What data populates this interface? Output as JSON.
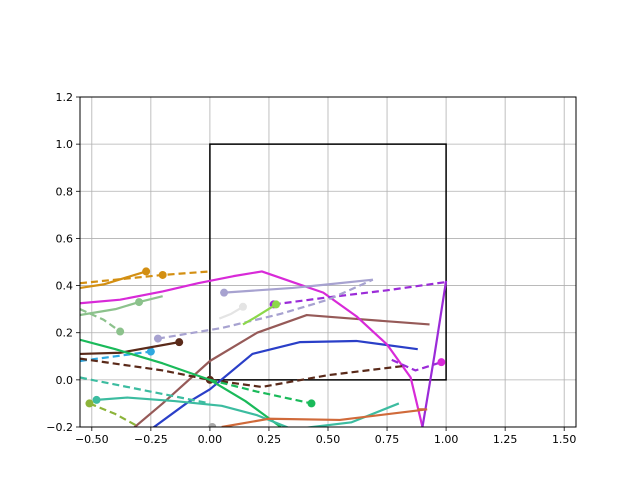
{
  "chart_data": {
    "type": "line",
    "title": "",
    "xlabel": "",
    "ylabel": "",
    "xlim": [
      -0.55,
      1.55
    ],
    "ylim": [
      -0.2,
      1.2
    ],
    "grid": true,
    "xticks": [
      "−0.50",
      "−0.25",
      "0.00",
      "0.25",
      "0.50",
      "0.75",
      "1.00",
      "1.25",
      "1.50"
    ],
    "xtick_values": [
      -0.5,
      -0.25,
      0,
      0.25,
      0.5,
      0.75,
      1.0,
      1.25,
      1.5
    ],
    "yticks": [
      "−0.2",
      "0.0",
      "0.2",
      "0.4",
      "0.6",
      "0.8",
      "1.0",
      "1.2"
    ],
    "ytick_values": [
      -0.2,
      0,
      0.2,
      0.4,
      0.6,
      0.8,
      1.0,
      1.2
    ],
    "box": {
      "x": [
        0,
        1,
        1,
        0,
        0
      ],
      "y": [
        0,
        0,
        1,
        1,
        0
      ],
      "color": "#000000"
    },
    "series": [
      {
        "color": "#2a3fc8",
        "dash": false,
        "x": [
          -0.25,
          -0.1,
          0.0,
          0.18,
          0.38,
          0.62,
          0.88
        ],
        "y": [
          -0.21,
          -0.1,
          -0.04,
          0.11,
          0.16,
          0.165,
          0.13
        ]
      },
      {
        "color": "#965a58",
        "dash": false,
        "x": [
          -0.33,
          -0.2,
          0.0,
          0.2,
          0.41,
          0.6,
          0.93
        ],
        "y": [
          -0.21,
          -0.1,
          0.08,
          0.2,
          0.275,
          0.26,
          0.235
        ]
      },
      {
        "color": "#d82ad8",
        "dash": false,
        "x": [
          -0.55,
          -0.38,
          -0.2,
          -0.05,
          0.1,
          0.22,
          0.35,
          0.48,
          0.62,
          0.75,
          0.85,
          0.9
        ],
        "y": [
          0.325,
          0.34,
          0.375,
          0.41,
          0.44,
          0.46,
          0.415,
          0.37,
          0.27,
          0.15,
          0.01,
          -0.2
        ]
      },
      {
        "color": "#9b2bd8",
        "dash": false,
        "x": [
          0.9,
          0.95,
          1.0
        ],
        "y": [
          -0.2,
          0.1,
          0.42
        ]
      },
      {
        "color": "#9b2bd8",
        "dash": true,
        "marker": 0,
        "x": [
          0.27,
          0.5,
          0.75,
          1.0
        ],
        "y": [
          0.32,
          0.35,
          0.38,
          0.415
        ]
      },
      {
        "color": "#9b2bd8",
        "dash": true,
        "x": [
          0.77,
          0.87,
          0.98
        ],
        "y": [
          0.085,
          0.04,
          0.075
        ]
      },
      {
        "color": "#d82ad8",
        "dash": false,
        "marker": 2,
        "x": [
          0.98
        ],
        "y": [
          0.075
        ]
      },
      {
        "color": "#a7a2d0",
        "dash": false,
        "marker": 0,
        "x": [
          0.06,
          0.35,
          0.5,
          0.69
        ],
        "y": [
          0.37,
          0.39,
          0.405,
          0.425
        ]
      },
      {
        "color": "#a7a2d0",
        "dash": true,
        "marker": 0,
        "x": [
          -0.22,
          0.05,
          0.3,
          0.5,
          0.69
        ],
        "y": [
          0.175,
          0.22,
          0.28,
          0.34,
          0.425
        ]
      },
      {
        "color": "#d38f12",
        "dash": false,
        "marker": 2,
        "x": [
          -0.55,
          -0.45,
          -0.27
        ],
        "y": [
          0.39,
          0.405,
          0.46
        ]
      },
      {
        "color": "#d38f12",
        "dash": true,
        "marker": 2,
        "x": [
          -0.55,
          -0.4,
          -0.2,
          0.0
        ],
        "y": [
          0.41,
          0.425,
          0.445,
          0.46
        ]
      },
      {
        "color": "#8cc28c",
        "dash": false,
        "marker": 2,
        "x": [
          -0.55,
          -0.4,
          -0.3,
          -0.2
        ],
        "y": [
          0.275,
          0.3,
          0.33,
          0.355
        ]
      },
      {
        "color": "#8cc28c",
        "dash": true,
        "marker": 2,
        "x": [
          -0.55,
          -0.45,
          -0.38
        ],
        "y": [
          0.3,
          0.255,
          0.205
        ]
      },
      {
        "color": "#2fa8e0",
        "dash": true,
        "marker": 2,
        "x": [
          -0.55,
          -0.4,
          -0.25
        ],
        "y": [
          0.08,
          0.1,
          0.12
        ]
      },
      {
        "color": "#5a2a1a",
        "dash": false,
        "marker": 2,
        "x": [
          -0.55,
          -0.38,
          -0.13
        ],
        "y": [
          0.11,
          0.115,
          0.16
        ]
      },
      {
        "color": "#5a2a1a",
        "dash": true,
        "marker": 2,
        "x": [
          -0.55,
          -0.2,
          0.0,
          0.22,
          0.5,
          0.83
        ],
        "y": [
          0.09,
          0.04,
          0.0,
          -0.03,
          0.02,
          0.06
        ]
      },
      {
        "color": "#e4e4e4",
        "dash": false,
        "marker": 2,
        "x": [
          0.04,
          0.09,
          0.14
        ],
        "y": [
          0.26,
          0.28,
          0.31
        ]
      },
      {
        "color": "#8cd84a",
        "dash": false,
        "marker": 2,
        "x": [
          0.14,
          0.2,
          0.28
        ],
        "y": [
          0.235,
          0.27,
          0.32
        ]
      },
      {
        "color": "#1aba5a",
        "dash": false,
        "x": [
          -0.55,
          -0.4,
          -0.2,
          0.0,
          0.15,
          0.3
        ],
        "y": [
          0.17,
          0.13,
          0.07,
          0.0,
          -0.09,
          -0.2
        ]
      },
      {
        "color": "#1aba5a",
        "dash": true,
        "marker": 2,
        "x": [
          0.0,
          0.2,
          0.43
        ],
        "y": [
          0.0,
          -0.05,
          -0.1
        ]
      },
      {
        "color": "#3cbca0",
        "dash": true,
        "x": [
          -0.55,
          -0.4,
          -0.2,
          0.0
        ],
        "y": [
          0.01,
          -0.02,
          -0.06,
          -0.1
        ]
      },
      {
        "color": "#3cbca0",
        "dash": false,
        "marker": 0,
        "x": [
          -0.48,
          -0.35,
          -0.15,
          0.05,
          0.2,
          0.35,
          0.6,
          0.8
        ],
        "y": [
          -0.085,
          -0.075,
          -0.09,
          -0.11,
          -0.15,
          -0.21,
          -0.18,
          -0.1
        ]
      },
      {
        "color": "#8cb43a",
        "dash": true,
        "marker": 0,
        "x": [
          -0.51,
          -0.4,
          -0.3
        ],
        "y": [
          -0.1,
          -0.145,
          -0.2
        ]
      },
      {
        "color": "#d06a3a",
        "dash": false,
        "x": [
          0.05,
          0.25,
          0.55,
          0.92
        ],
        "y": [
          -0.2,
          -0.165,
          -0.17,
          -0.125
        ]
      },
      {
        "color": "#d06a3a",
        "dash": true,
        "x": [
          0.88,
          0.92
        ],
        "y": [
          -0.125,
          -0.125
        ]
      },
      {
        "color": "#a8a8a8",
        "dash": false,
        "marker": 0,
        "x": [
          0.01
        ],
        "y": [
          -0.2
        ]
      }
    ]
  }
}
